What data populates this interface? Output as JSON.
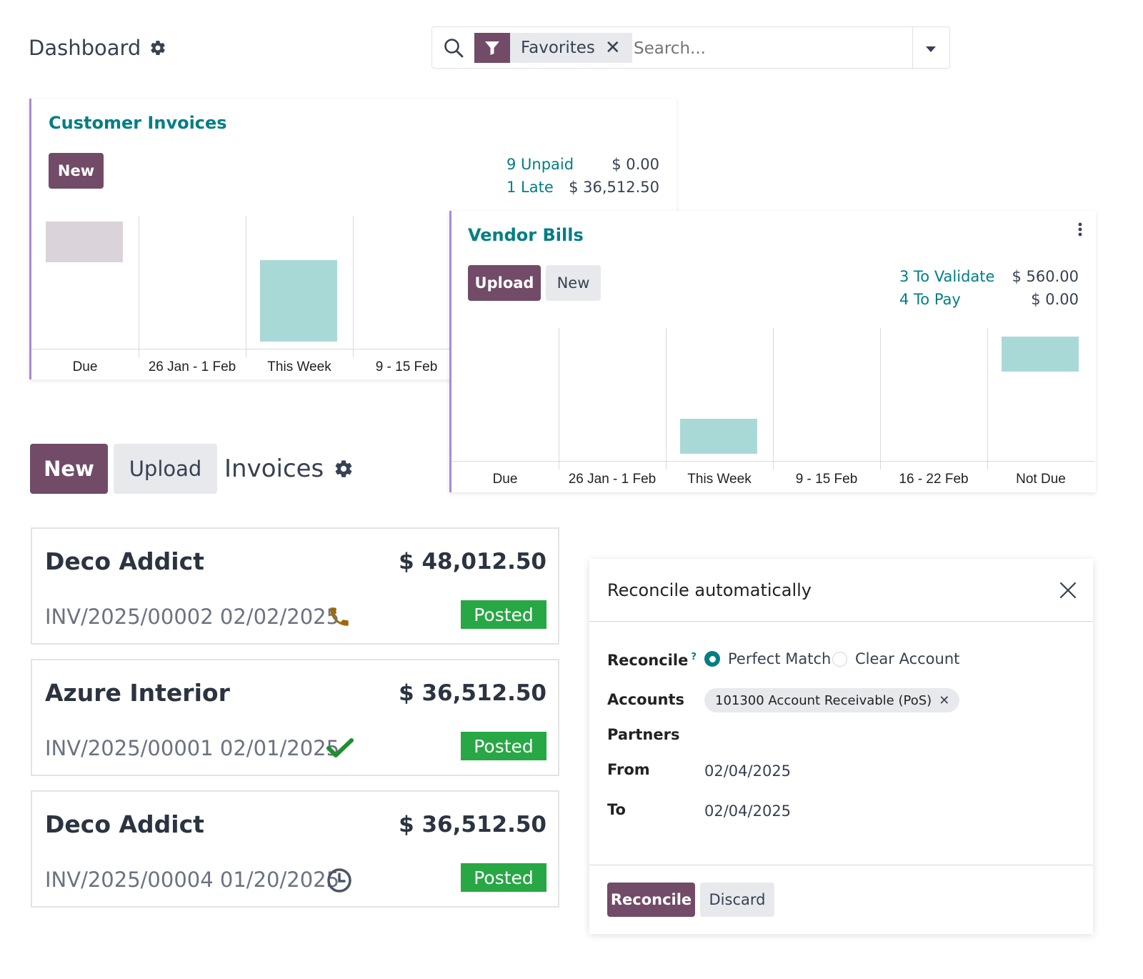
{
  "header": {
    "title": "Dashboard",
    "search": {
      "facet_label": "Favorites",
      "placeholder": "Search..."
    }
  },
  "customer_invoices": {
    "title": "Customer Invoices",
    "new_label": "New",
    "stats": [
      {
        "label": "9 Unpaid",
        "amount": "$ 0.00"
      },
      {
        "label": "1 Late",
        "amount": "$ 36,512.50"
      }
    ]
  },
  "vendor_bills": {
    "title": "Vendor Bills",
    "upload_label": "Upload",
    "new_label": "New",
    "stats": [
      {
        "label": "3 To Validate",
        "amount": "$ 560.00"
      },
      {
        "label": "4 To Pay",
        "amount": "$ 0.00"
      }
    ]
  },
  "chart_data": [
    {
      "type": "bar",
      "categories": [
        "Due",
        "26 Jan - 1 Feb",
        "This Week",
        "9 - 15 Feb"
      ],
      "series": [
        {
          "values": [
            0.5,
            0,
            1,
            0
          ]
        }
      ],
      "bar_colors": [
        "#DAD3DA",
        "#A9D9D7",
        "#A9D9D7",
        "#A9D9D7"
      ]
    },
    {
      "type": "bar",
      "categories": [
        "Due",
        "26 Jan - 1 Feb",
        "This Week",
        "9 - 15 Feb",
        "16 - 22 Feb",
        "Not Due"
      ],
      "series": [
        {
          "values": [
            0,
            0,
            0.43,
            0,
            0,
            0.43
          ]
        }
      ],
      "bar_colors": [
        "#A9D9D7",
        "#A9D9D7",
        "#A9D9D7",
        "#A9D9D7",
        "#A9D9D7",
        "#A9D9D7"
      ]
    }
  ],
  "control_panel": {
    "new_label": "New",
    "upload_label": "Upload",
    "title": "Invoices"
  },
  "invoices": [
    {
      "partner": "Deco Addict",
      "amount": "$ 48,012.50",
      "ref": "INV/2025/00002 02/02/2025",
      "status": "Posted",
      "activity_icon": "phone-icon"
    },
    {
      "partner": "Azure Interior",
      "amount": "$ 36,512.50",
      "ref": "INV/2025/00001 02/01/2025",
      "status": "Posted",
      "activity_icon": "check-icon"
    },
    {
      "partner": "Deco Addict",
      "amount": "$ 36,512.50",
      "ref": "INV/2025/00004 01/20/2025",
      "status": "Posted",
      "activity_icon": "clock-icon"
    }
  ],
  "dialog": {
    "title": "Reconcile automatically",
    "fields": {
      "reconcile_label": "Reconcile",
      "reconcile_help": "?",
      "options": [
        "Perfect Match",
        "Clear Account"
      ],
      "selected_option": "Perfect Match",
      "accounts_label": "Accounts",
      "account_tag": "101300 Account Receivable (PoS)",
      "partners_label": "Partners",
      "from_label": "From",
      "from_value": "02/04/2025",
      "to_label": "To",
      "to_value": "02/04/2025"
    },
    "reconcile_button": "Reconcile",
    "discard_button": "Discard"
  },
  "colors": {
    "primary": "#714B67",
    "link": "#017E84",
    "posted": "#28a745",
    "bar": "#A9D9D7",
    "bar_muted": "#DAD3DA"
  }
}
